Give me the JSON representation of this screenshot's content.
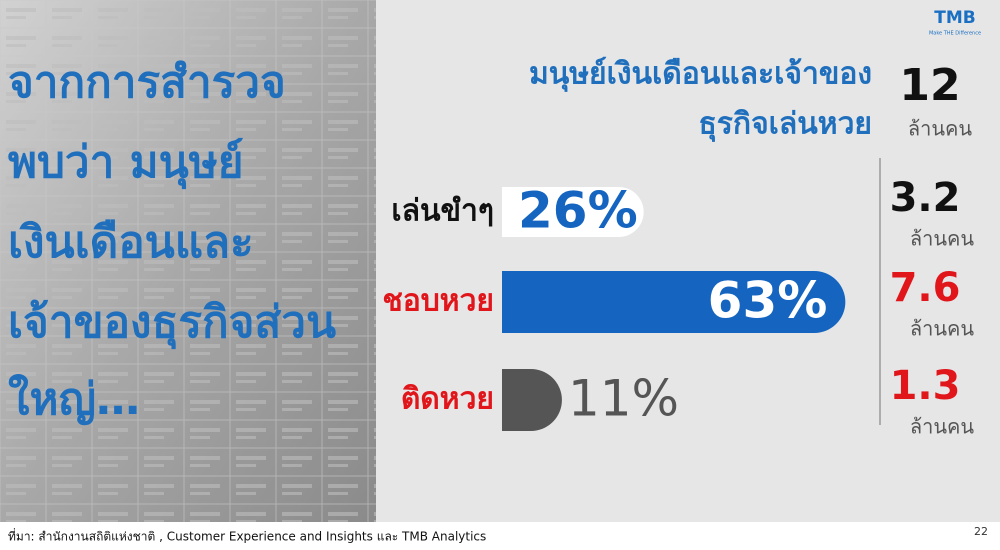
{
  "logo": {
    "name": "TMB",
    "tagline": "Make THE Difference"
  },
  "headline": [
    "จากการสำรวจ",
    "พบว่า มนุษย์",
    "เงินเดือนและ",
    "เจ้าของธุรกิจส่วน",
    "ใหญ่…"
  ],
  "chart_data": {
    "type": "bar",
    "orientation": "horizontal",
    "title": [
      "มนุษย์เงินเดือนและเจ้าของ",
      "ธุรกิจเล่นหวย"
    ],
    "total": 12,
    "unit": "ล้านคน",
    "categories": [
      "เล่นขำๆ",
      "ชอบหวย",
      "ติดหวย"
    ],
    "values": [
      26,
      63,
      11
    ],
    "value_labels": [
      "26%",
      "63%",
      "11%"
    ],
    "colors": [
      "#ffffff",
      "#1565c0",
      "#555555"
    ],
    "counts": [
      3.2,
      7.6,
      1.3
    ]
  },
  "footer": {
    "source": "ที่มา: สำนักงานสถิติแห่งชาติ , Customer Experience and Insights และ TMB Analytics",
    "page": "22"
  }
}
